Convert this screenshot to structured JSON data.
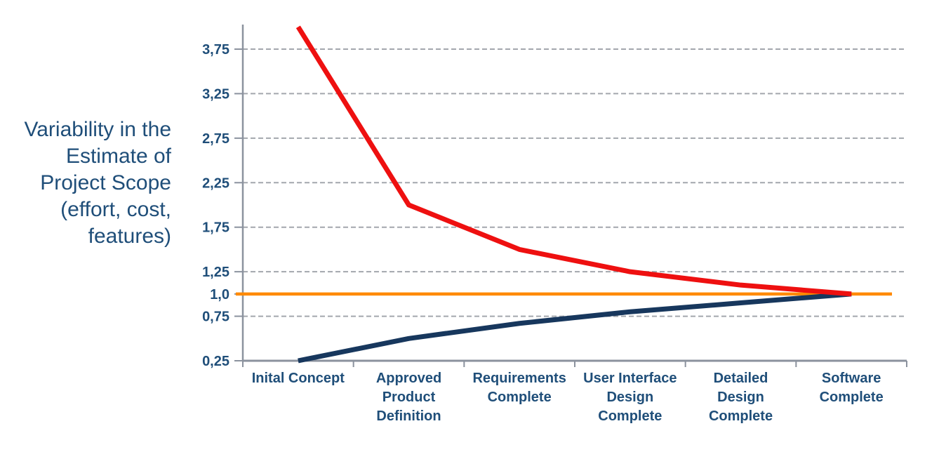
{
  "page": {
    "background_color": "#ffffff"
  },
  "chart_data": {
    "type": "line",
    "title": "",
    "ylabel_lines": [
      "Variability in the",
      "Estimate of",
      "Project Scope",
      "(effort, cost,",
      "features)"
    ],
    "category_labels": [
      [
        "Inital Concept"
      ],
      [
        "Approved",
        "Product",
        "Definition"
      ],
      [
        "Requirements",
        "Complete"
      ],
      [
        "User Interface",
        "Design",
        "Complete"
      ],
      [
        "Detailed",
        "Design",
        "Complete"
      ],
      [
        "Software",
        "Complete"
      ]
    ],
    "y_ticks": [
      {
        "value": 3.75,
        "label": "3,75"
      },
      {
        "value": 3.25,
        "label": "3,25"
      },
      {
        "value": 2.75,
        "label": "2,75"
      },
      {
        "value": 2.25,
        "label": "2,25"
      },
      {
        "value": 1.75,
        "label": "1,75"
      },
      {
        "value": 1.25,
        "label": "1,25"
      },
      {
        "value": 1.0,
        "label": "1,0"
      },
      {
        "value": 0.75,
        "label": "0,75"
      },
      {
        "value": 0.25,
        "label": "0,25"
      }
    ],
    "gridline_values": [
      3.75,
      3.25,
      2.75,
      2.25,
      1.75,
      1.25,
      0.75
    ],
    "series": [
      {
        "name": "upper_estimate_bound",
        "color": "#ee1010",
        "values": [
          4.0,
          2.0,
          1.5,
          1.25,
          1.1,
          1.0
        ]
      },
      {
        "name": "lower_estimate_bound",
        "color": "#17375d",
        "values": [
          0.25,
          0.5,
          0.67,
          0.8,
          0.9,
          1.0
        ]
      }
    ],
    "reference_line": {
      "name": "exact_estimate_baseline",
      "value": 1.0,
      "color": "#ff8a00"
    },
    "ylim": [
      0.25,
      4.0
    ],
    "grid": "dashed-horizontal",
    "legend": "none",
    "colors": {
      "axis": "#8b929e",
      "grid": "#a3a7ad",
      "text": "#1f4e79"
    }
  }
}
